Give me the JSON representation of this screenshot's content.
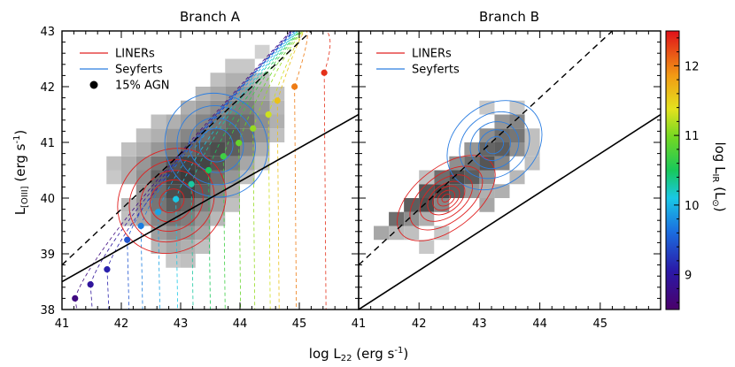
{
  "chart_data": {
    "type": "scatter",
    "xlabel": "log L",
    "xlabel_sub": "22",
    "xlabel_units": " (erg s",
    "xlabel_units_sup": "-1",
    "xlabel_units_end": ")",
    "ylabel": "L",
    "ylabel_sub": "[OIII]",
    "ylabel_units": " (erg s",
    "ylabel_units_sup": "-1",
    "ylabel_units_end": ")",
    "colorbar_label": "log L",
    "colorbar_label_sub": "IR",
    "colorbar_label_units": " (L",
    "colorbar_label_units_sub": "⊙",
    "colorbar_label_units_end": ")",
    "colorbar_range": [
      8.5,
      12.5
    ],
    "colorbar_ticks": [
      "9",
      "10",
      "11",
      "12"
    ],
    "colors": {
      "liner": "#e02020",
      "seyfert": "#2a7de1",
      "fit_line": "#000000",
      "density_dark": "#3c3c3c",
      "density_light": "#dcdcdc"
    },
    "panels": [
      {
        "title": "Branch A",
        "xlim": [
          41,
          46
        ],
        "ylim": [
          38,
          43
        ],
        "x_ticks": [
          "41",
          "42",
          "43",
          "44",
          "45"
        ],
        "y_ticks": [
          "38",
          "39",
          "40",
          "41",
          "42",
          "43"
        ],
        "legend": [
          {
            "label": "LINERs",
            "kind": "line",
            "color": "#e02020"
          },
          {
            "label": "Seyferts",
            "kind": "line",
            "color": "#2a7de1"
          },
          {
            "label": "15% AGN",
            "kind": "dot",
            "color": "#000000"
          }
        ],
        "solid_line": [
          [
            41,
            38.5
          ],
          [
            46,
            41.5
          ]
        ],
        "dashed_line": [
          [
            41,
            38.8
          ],
          [
            45.2,
            43.0
          ]
        ],
        "agn_points": [
          {
            "x": 41.22,
            "y": 38.2,
            "lir": 8.7
          },
          {
            "x": 41.48,
            "y": 38.45,
            "lir": 8.95
          },
          {
            "x": 41.76,
            "y": 38.72,
            "lir": 9.1
          },
          {
            "x": 42.1,
            "y": 39.25,
            "lir": 9.45
          },
          {
            "x": 42.33,
            "y": 39.5,
            "lir": 9.7
          },
          {
            "x": 42.62,
            "y": 39.75,
            "lir": 9.9
          },
          {
            "x": 42.92,
            "y": 39.98,
            "lir": 10.1
          },
          {
            "x": 43.18,
            "y": 40.25,
            "lir": 10.3
          },
          {
            "x": 43.47,
            "y": 40.5,
            "lir": 10.5
          },
          {
            "x": 43.72,
            "y": 40.75,
            "lir": 10.7
          },
          {
            "x": 43.98,
            "y": 40.99,
            "lir": 10.9
          },
          {
            "x": 44.22,
            "y": 41.25,
            "lir": 11.1
          },
          {
            "x": 44.48,
            "y": 41.5,
            "lir": 11.3
          },
          {
            "x": 44.63,
            "y": 41.75,
            "lir": 11.6
          },
          {
            "x": 44.92,
            "y": 42.0,
            "lir": 12.0
          },
          {
            "x": 45.42,
            "y": 42.25,
            "lir": 12.35
          }
        ],
        "density_cells": [
          {
            "x": 42.5,
            "y": 39.0,
            "v": 0.25
          },
          {
            "x": 42.75,
            "y": 39.0,
            "v": 0.35
          },
          {
            "x": 43.0,
            "y": 39.0,
            "v": 0.3
          },
          {
            "x": 42.5,
            "y": 39.25,
            "v": 0.4
          },
          {
            "x": 42.75,
            "y": 39.25,
            "v": 0.5
          },
          {
            "x": 43.0,
            "y": 39.25,
            "v": 0.45
          },
          {
            "x": 43.25,
            "y": 39.25,
            "v": 0.35
          },
          {
            "x": 42.0,
            "y": 39.5,
            "v": 0.2
          },
          {
            "x": 42.25,
            "y": 39.5,
            "v": 0.35
          },
          {
            "x": 42.5,
            "y": 39.5,
            "v": 0.55
          },
          {
            "x": 42.75,
            "y": 39.5,
            "v": 0.65
          },
          {
            "x": 43.0,
            "y": 39.5,
            "v": 0.6
          },
          {
            "x": 43.25,
            "y": 39.5,
            "v": 0.45
          },
          {
            "x": 43.5,
            "y": 39.5,
            "v": 0.25
          },
          {
            "x": 42.0,
            "y": 39.75,
            "v": 0.25
          },
          {
            "x": 42.25,
            "y": 39.75,
            "v": 0.45
          },
          {
            "x": 42.5,
            "y": 39.75,
            "v": 0.65
          },
          {
            "x": 42.75,
            "y": 39.75,
            "v": 0.8
          },
          {
            "x": 43.0,
            "y": 39.75,
            "v": 0.75
          },
          {
            "x": 43.25,
            "y": 39.75,
            "v": 0.6
          },
          {
            "x": 43.5,
            "y": 39.75,
            "v": 0.4
          },
          {
            "x": 43.75,
            "y": 39.75,
            "v": 0.2
          },
          {
            "x": 42.25,
            "y": 40.0,
            "v": 0.45
          },
          {
            "x": 42.5,
            "y": 40.0,
            "v": 0.7
          },
          {
            "x": 42.75,
            "y": 40.0,
            "v": 0.9
          },
          {
            "x": 43.0,
            "y": 40.0,
            "v": 0.95
          },
          {
            "x": 43.25,
            "y": 40.0,
            "v": 0.8
          },
          {
            "x": 43.5,
            "y": 40.0,
            "v": 0.55
          },
          {
            "x": 43.75,
            "y": 40.0,
            "v": 0.3
          },
          {
            "x": 41.75,
            "y": 40.25,
            "v": 0.15
          },
          {
            "x": 42.0,
            "y": 40.25,
            "v": 0.3
          },
          {
            "x": 42.25,
            "y": 40.25,
            "v": 0.5
          },
          {
            "x": 42.5,
            "y": 40.25,
            "v": 0.75
          },
          {
            "x": 42.75,
            "y": 40.25,
            "v": 0.95
          },
          {
            "x": 43.0,
            "y": 40.25,
            "v": 1.0
          },
          {
            "x": 43.25,
            "y": 40.25,
            "v": 0.9
          },
          {
            "x": 43.5,
            "y": 40.25,
            "v": 0.7
          },
          {
            "x": 43.75,
            "y": 40.25,
            "v": 0.45
          },
          {
            "x": 44.0,
            "y": 40.25,
            "v": 0.2
          },
          {
            "x": 41.75,
            "y": 40.5,
            "v": 0.2
          },
          {
            "x": 42.0,
            "y": 40.5,
            "v": 0.3
          },
          {
            "x": 42.25,
            "y": 40.5,
            "v": 0.45
          },
          {
            "x": 42.5,
            "y": 40.5,
            "v": 0.65
          },
          {
            "x": 42.75,
            "y": 40.5,
            "v": 0.85
          },
          {
            "x": 43.0,
            "y": 40.5,
            "v": 0.95
          },
          {
            "x": 43.25,
            "y": 40.5,
            "v": 0.95
          },
          {
            "x": 43.5,
            "y": 40.5,
            "v": 0.85
          },
          {
            "x": 43.75,
            "y": 40.5,
            "v": 0.6
          },
          {
            "x": 44.0,
            "y": 40.5,
            "v": 0.35
          },
          {
            "x": 44.25,
            "y": 40.5,
            "v": 0.15
          },
          {
            "x": 42.0,
            "y": 40.75,
            "v": 0.2
          },
          {
            "x": 42.25,
            "y": 40.75,
            "v": 0.3
          },
          {
            "x": 42.5,
            "y": 40.75,
            "v": 0.45
          },
          {
            "x": 42.75,
            "y": 40.75,
            "v": 0.6
          },
          {
            "x": 43.0,
            "y": 40.75,
            "v": 0.75
          },
          {
            "x": 43.25,
            "y": 40.75,
            "v": 0.85
          },
          {
            "x": 43.5,
            "y": 40.75,
            "v": 0.9
          },
          {
            "x": 43.75,
            "y": 40.75,
            "v": 0.8
          },
          {
            "x": 44.0,
            "y": 40.75,
            "v": 0.55
          },
          {
            "x": 44.25,
            "y": 40.75,
            "v": 0.3
          },
          {
            "x": 42.25,
            "y": 41.0,
            "v": 0.2
          },
          {
            "x": 42.5,
            "y": 41.0,
            "v": 0.3
          },
          {
            "x": 42.75,
            "y": 41.0,
            "v": 0.45
          },
          {
            "x": 43.0,
            "y": 41.0,
            "v": 0.55
          },
          {
            "x": 43.25,
            "y": 41.0,
            "v": 0.7
          },
          {
            "x": 43.5,
            "y": 41.0,
            "v": 0.8
          },
          {
            "x": 43.75,
            "y": 41.0,
            "v": 0.85
          },
          {
            "x": 44.0,
            "y": 41.0,
            "v": 0.7
          },
          {
            "x": 44.25,
            "y": 41.0,
            "v": 0.45
          },
          {
            "x": 44.5,
            "y": 41.0,
            "v": 0.2
          },
          {
            "x": 42.5,
            "y": 41.25,
            "v": 0.2
          },
          {
            "x": 42.75,
            "y": 41.25,
            "v": 0.3
          },
          {
            "x": 43.0,
            "y": 41.25,
            "v": 0.4
          },
          {
            "x": 43.25,
            "y": 41.25,
            "v": 0.55
          },
          {
            "x": 43.5,
            "y": 41.25,
            "v": 0.65
          },
          {
            "x": 43.75,
            "y": 41.25,
            "v": 0.75
          },
          {
            "x": 44.0,
            "y": 41.25,
            "v": 0.7
          },
          {
            "x": 44.25,
            "y": 41.25,
            "v": 0.5
          },
          {
            "x": 44.5,
            "y": 41.25,
            "v": 0.3
          },
          {
            "x": 43.0,
            "y": 41.5,
            "v": 0.3
          },
          {
            "x": 43.25,
            "y": 41.5,
            "v": 0.4
          },
          {
            "x": 43.5,
            "y": 41.5,
            "v": 0.5
          },
          {
            "x": 43.75,
            "y": 41.5,
            "v": 0.6
          },
          {
            "x": 44.0,
            "y": 41.5,
            "v": 0.6
          },
          {
            "x": 44.25,
            "y": 41.5,
            "v": 0.45
          },
          {
            "x": 44.5,
            "y": 41.5,
            "v": 0.25
          },
          {
            "x": 43.25,
            "y": 41.75,
            "v": 0.25
          },
          {
            "x": 43.5,
            "y": 41.75,
            "v": 0.35
          },
          {
            "x": 43.75,
            "y": 41.75,
            "v": 0.45
          },
          {
            "x": 44.0,
            "y": 41.75,
            "v": 0.45
          },
          {
            "x": 44.25,
            "y": 41.75,
            "v": 0.35
          },
          {
            "x": 44.5,
            "y": 41.75,
            "v": 0.2
          },
          {
            "x": 43.5,
            "y": 42.0,
            "v": 0.2
          },
          {
            "x": 43.75,
            "y": 42.0,
            "v": 0.3
          },
          {
            "x": 44.0,
            "y": 42.0,
            "v": 0.3
          },
          {
            "x": 44.25,
            "y": 42.0,
            "v": 0.2
          },
          {
            "x": 43.75,
            "y": 42.25,
            "v": 0.15
          },
          {
            "x": 44.0,
            "y": 42.25,
            "v": 0.15
          },
          {
            "x": 44.25,
            "y": 42.5,
            "v": 0.1
          },
          {
            "x": 42.75,
            "y": 38.75,
            "v": 0.15
          },
          {
            "x": 43.0,
            "y": 38.75,
            "v": 0.2
          },
          {
            "x": 43.25,
            "y": 39.0,
            "v": 0.2
          }
        ],
        "contours": [
          {
            "class": "liner",
            "cx": 42.85,
            "cy": 39.95,
            "rx": [
              0.95,
              0.75,
              0.55,
              0.38,
              0.22
            ],
            "ry": [
              0.9,
              0.7,
              0.52,
              0.36,
              0.2
            ]
          },
          {
            "class": "seyfert",
            "cx": 43.6,
            "cy": 40.95,
            "rx": [
              0.85,
              0.65,
              0.45,
              0.28
            ],
            "ry": [
              0.95,
              0.72,
              0.5,
              0.3
            ]
          }
        ]
      },
      {
        "title": "Branch B",
        "xlim": [
          41,
          46
        ],
        "ylim": [
          38,
          43
        ],
        "x_ticks": [
          "41",
          "42",
          "43",
          "44",
          "45"
        ],
        "y_ticks": [],
        "legend": [
          {
            "label": "LINERs",
            "kind": "line",
            "color": "#e02020"
          },
          {
            "label": "Seyferts",
            "kind": "line",
            "color": "#2a7de1"
          }
        ],
        "solid_line": [
          [
            41,
            38.0
          ],
          [
            46,
            41.5
          ]
        ],
        "dashed_line": [
          [
            41,
            38.8
          ],
          [
            45.2,
            43.0
          ]
        ],
        "agn_points": [],
        "density_cells": [
          {
            "x": 41.5,
            "y": 39.5,
            "v": 0.7
          },
          {
            "x": 41.75,
            "y": 39.5,
            "v": 0.5
          },
          {
            "x": 41.25,
            "y": 39.25,
            "v": 0.35
          },
          {
            "x": 41.5,
            "y": 39.25,
            "v": 0.25
          },
          {
            "x": 41.75,
            "y": 39.75,
            "v": 0.8
          },
          {
            "x": 42.0,
            "y": 39.75,
            "v": 0.9
          },
          {
            "x": 42.25,
            "y": 39.75,
            "v": 0.55
          },
          {
            "x": 42.0,
            "y": 40.0,
            "v": 0.85
          },
          {
            "x": 42.25,
            "y": 40.0,
            "v": 0.95
          },
          {
            "x": 42.5,
            "y": 40.0,
            "v": 0.8
          },
          {
            "x": 42.75,
            "y": 40.0,
            "v": 0.45
          },
          {
            "x": 42.25,
            "y": 40.25,
            "v": 0.7
          },
          {
            "x": 42.5,
            "y": 40.25,
            "v": 0.9
          },
          {
            "x": 42.75,
            "y": 40.25,
            "v": 0.8
          },
          {
            "x": 43.0,
            "y": 40.25,
            "v": 0.5
          },
          {
            "x": 42.5,
            "y": 40.5,
            "v": 0.5
          },
          {
            "x": 42.75,
            "y": 40.5,
            "v": 0.7
          },
          {
            "x": 43.0,
            "y": 40.5,
            "v": 0.85
          },
          {
            "x": 43.25,
            "y": 40.5,
            "v": 0.55
          },
          {
            "x": 42.75,
            "y": 40.75,
            "v": 0.45
          },
          {
            "x": 43.0,
            "y": 40.75,
            "v": 0.75
          },
          {
            "x": 43.25,
            "y": 40.75,
            "v": 0.8
          },
          {
            "x": 43.5,
            "y": 40.75,
            "v": 0.5
          },
          {
            "x": 43.0,
            "y": 41.0,
            "v": 0.5
          },
          {
            "x": 43.25,
            "y": 41.0,
            "v": 0.7
          },
          {
            "x": 43.5,
            "y": 41.0,
            "v": 0.65
          },
          {
            "x": 43.25,
            "y": 41.25,
            "v": 0.45
          },
          {
            "x": 43.5,
            "y": 41.25,
            "v": 0.55
          },
          {
            "x": 43.0,
            "y": 39.75,
            "v": 0.35
          },
          {
            "x": 43.25,
            "y": 40.0,
            "v": 0.3
          },
          {
            "x": 43.5,
            "y": 40.25,
            "v": 0.25
          },
          {
            "x": 43.75,
            "y": 40.5,
            "v": 0.2
          },
          {
            "x": 41.75,
            "y": 39.25,
            "v": 0.2
          },
          {
            "x": 42.0,
            "y": 39.5,
            "v": 0.3
          },
          {
            "x": 42.25,
            "y": 39.25,
            "v": 0.15
          },
          {
            "x": 42.0,
            "y": 39.0,
            "v": 0.15
          },
          {
            "x": 43.75,
            "y": 40.75,
            "v": 0.2
          },
          {
            "x": 43.75,
            "y": 41.0,
            "v": 0.2
          },
          {
            "x": 43.0,
            "y": 41.5,
            "v": 0.15
          },
          {
            "x": 43.5,
            "y": 41.5,
            "v": 0.15
          },
          {
            "x": 42.0,
            "y": 40.25,
            "v": 0.2
          },
          {
            "x": 43.0,
            "y": 40.0,
            "v": 0.3
          }
        ],
        "contours": [
          {
            "class": "liner",
            "cx": 42.45,
            "cy": 40.0,
            "rx": [
              0.95,
              0.7,
              0.5,
              0.35,
              0.25,
              0.16,
              0.08
            ],
            "ry": [
              0.55,
              0.42,
              0.32,
              0.24,
              0.18,
              0.12,
              0.06
            ]
          },
          {
            "class": "seyfert",
            "cx": 43.25,
            "cy": 40.95,
            "rx": [
              0.85,
              0.62,
              0.42,
              0.28,
              0.16
            ],
            "ry": [
              0.72,
              0.55,
              0.4,
              0.26,
              0.14
            ]
          }
        ]
      }
    ]
  }
}
